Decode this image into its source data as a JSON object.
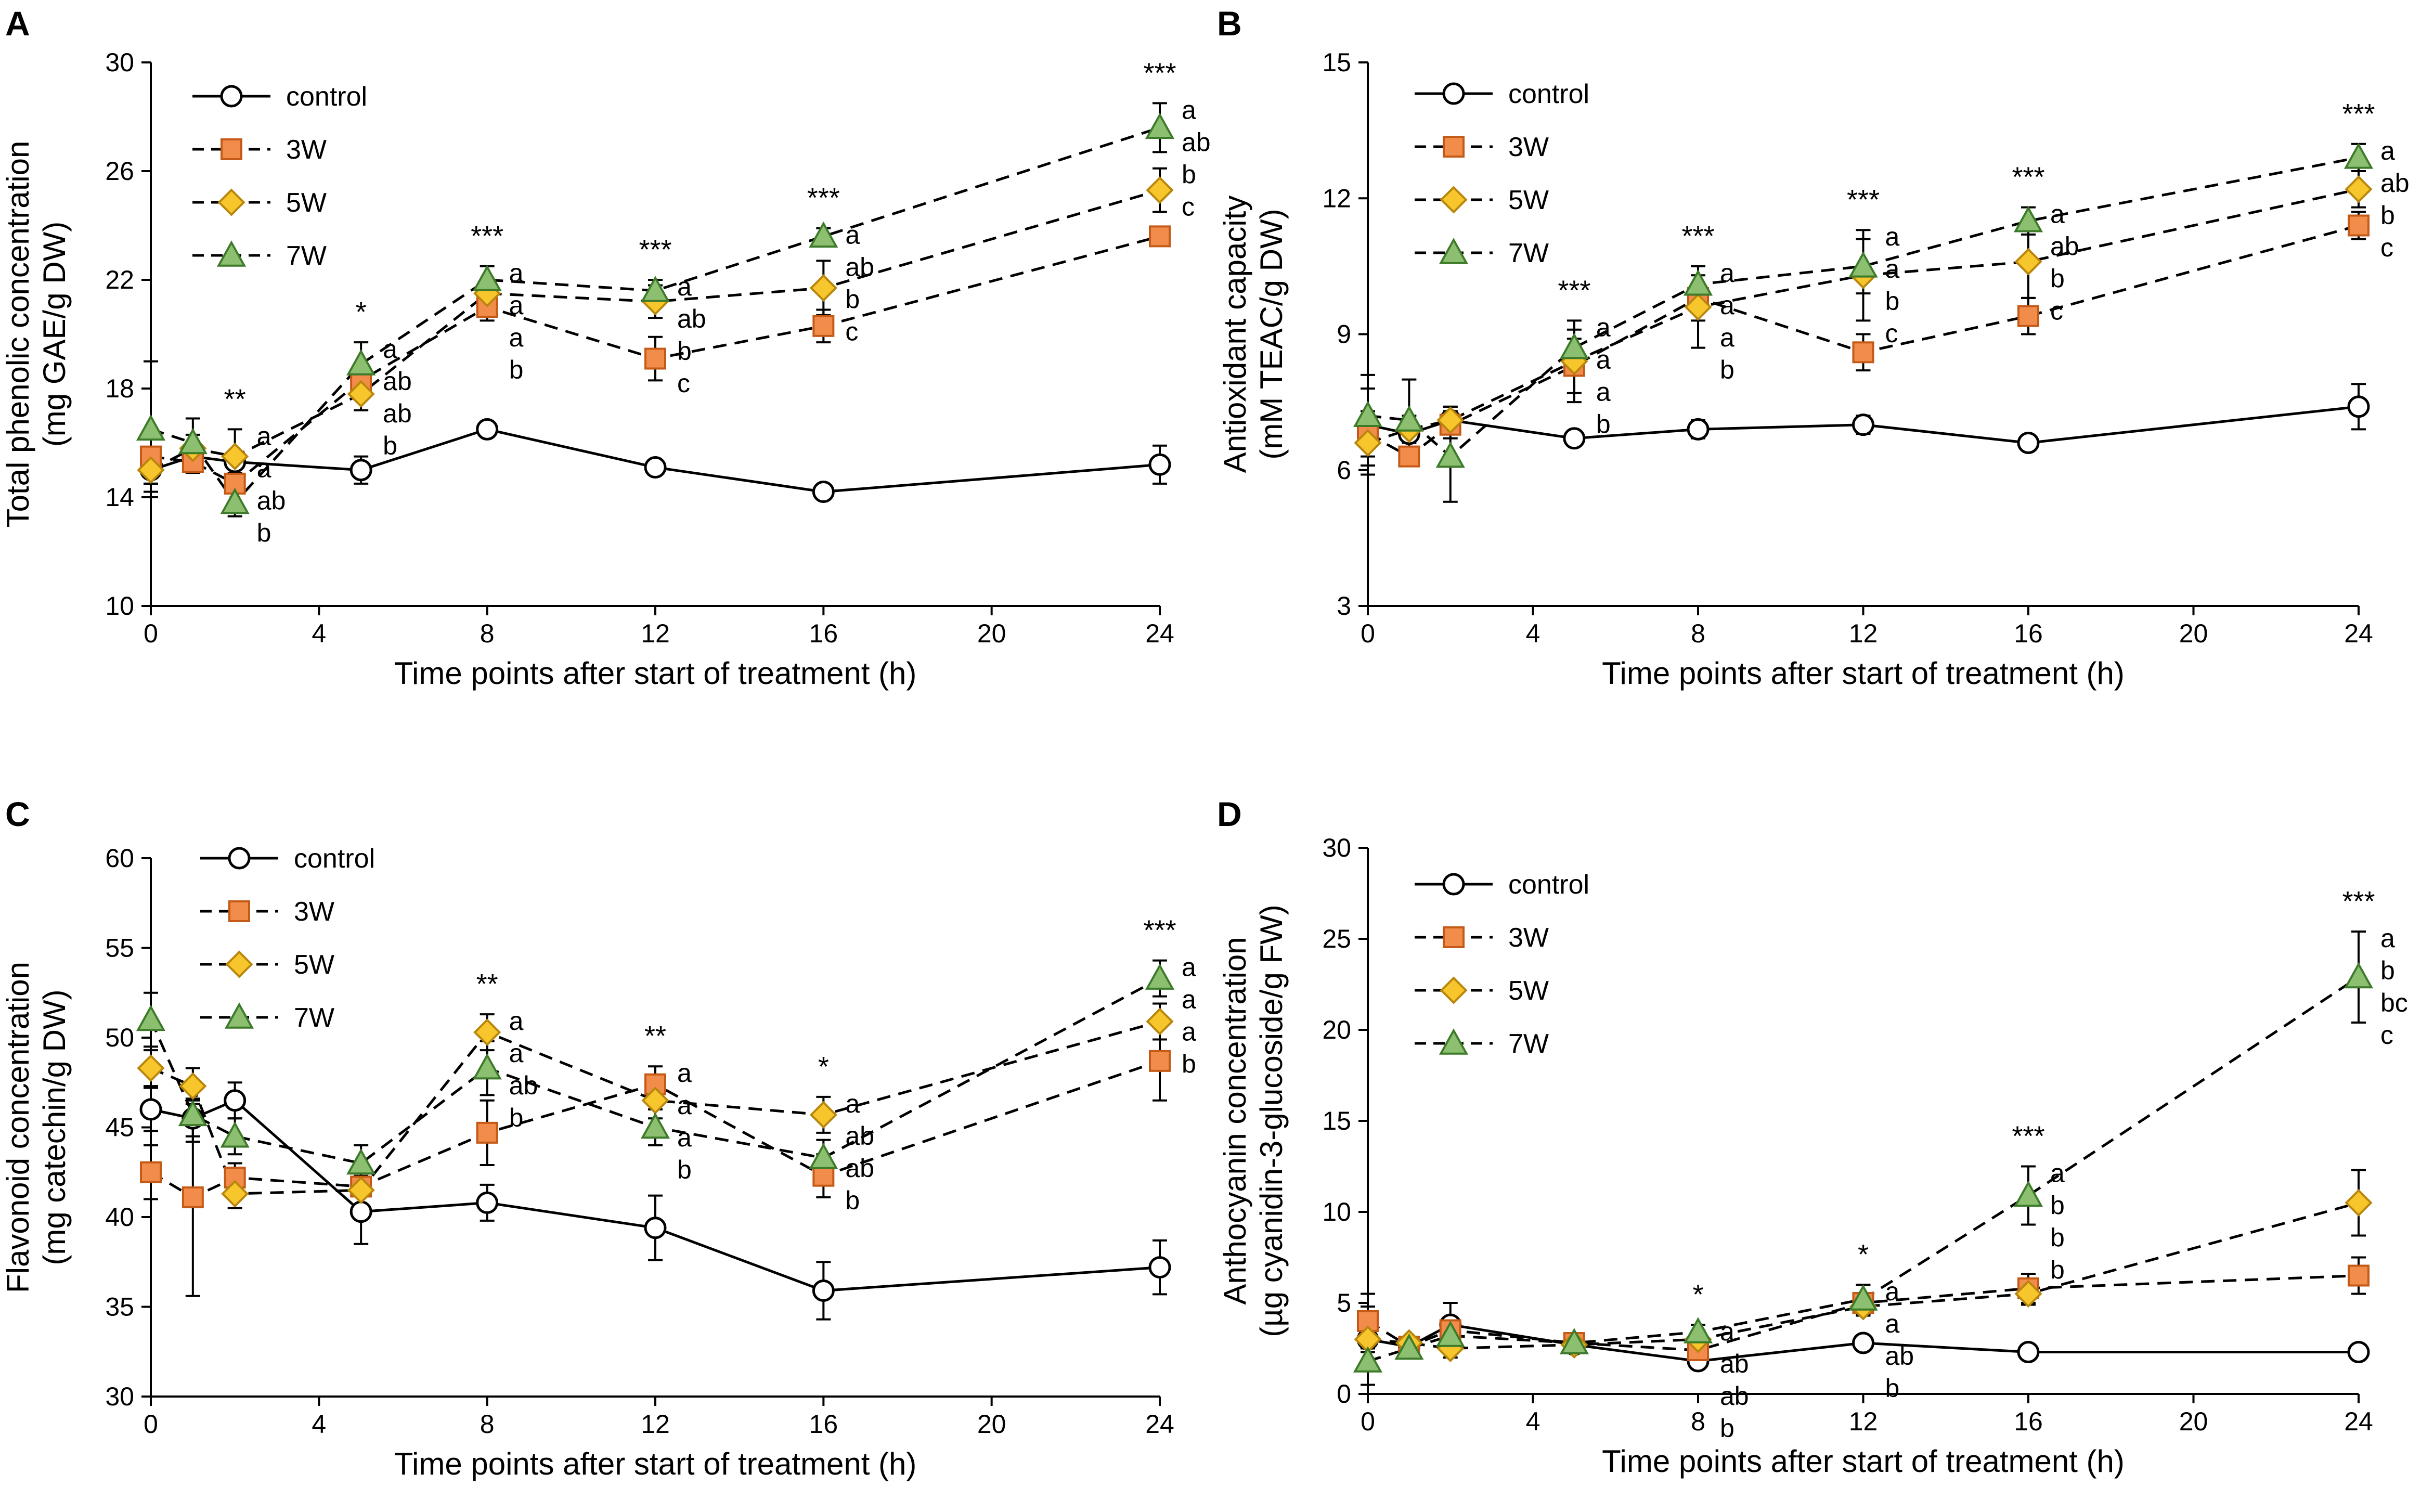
{
  "figure_labels": [
    "A",
    "B",
    "C",
    "D"
  ],
  "x_tick_labels": [
    "0",
    "4",
    "8",
    "12",
    "16",
    "20",
    "24"
  ],
  "colors": {
    "control_line": "#000000",
    "w3_fill": "#f28c4b",
    "w3_stroke": "#c45a17",
    "w5_fill": "#f7c52c",
    "w5_stroke": "#b8860b",
    "w7_fill": "#8cc070",
    "w7_stroke": "#3d7a2a",
    "control_fill": "#ffffff"
  },
  "chart_data": [
    {
      "type": "line",
      "label": "A",
      "xlabel": "Time points after start of treatment (h)",
      "ylabel": [
        "Total phenolic concentration",
        "(mg GAE/g DW)"
      ],
      "xlim": [
        0,
        24
      ],
      "ylim": [
        10,
        30
      ],
      "x_ticks": [
        0,
        4,
        8,
        12,
        16,
        20,
        24
      ],
      "y_ticks": [
        10,
        14,
        18,
        22,
        26,
        30
      ],
      "y_tick_labels": [
        "10",
        "14",
        "18",
        "22",
        "26",
        "30"
      ],
      "legend": [
        "control",
        "3W",
        "5W",
        "7W"
      ],
      "series": [
        {
          "name": "control",
          "marker": "circle",
          "dash": "solid",
          "x": [
            0,
            1,
            2,
            5,
            8,
            12,
            16,
            24
          ],
          "y": [
            15.0,
            15.5,
            15.3,
            15.0,
            16.5,
            15.1,
            14.2,
            15.2
          ],
          "err": [
            0.5,
            0.3,
            0.4,
            0.5,
            0.2,
            0.2,
            0.2,
            0.7
          ]
        },
        {
          "name": "3W",
          "marker": "square",
          "dash": "dashed",
          "x": [
            0,
            1,
            2,
            5,
            8,
            12,
            16,
            24
          ],
          "y": [
            15.5,
            15.3,
            14.5,
            18.3,
            21.0,
            19.1,
            20.3,
            23.6
          ],
          "err": [
            1.0,
            0.4,
            0.8,
            0.6,
            0.5,
            0.8,
            0.6,
            0.3
          ]
        },
        {
          "name": "5W",
          "marker": "diamond",
          "dash": "dashed",
          "x": [
            0,
            1,
            2,
            5,
            8,
            12,
            16,
            24
          ],
          "y": [
            15.0,
            15.8,
            15.5,
            17.8,
            21.5,
            21.2,
            21.7,
            25.3
          ],
          "err": [
            0.8,
            0.5,
            1.0,
            0.6,
            0.5,
            0.6,
            1.0,
            0.8
          ]
        },
        {
          "name": "7W",
          "marker": "triangle",
          "dash": "dashed",
          "x": [
            0,
            1,
            2,
            5,
            8,
            12,
            16,
            24
          ],
          "y": [
            16.5,
            16.0,
            13.8,
            18.9,
            22.0,
            21.6,
            23.6,
            27.6
          ],
          "err": [
            2.5,
            0.9,
            0.5,
            0.8,
            0.5,
            0.4,
            0.3,
            0.9
          ]
        }
      ],
      "significance": [
        {
          "x": 2,
          "text": "**"
        },
        {
          "x": 5,
          "text": "*"
        },
        {
          "x": 8,
          "text": "***"
        },
        {
          "x": 12,
          "text": "***"
        },
        {
          "x": 16,
          "text": "***"
        },
        {
          "x": 24,
          "text": "***"
        }
      ],
      "letters": [
        {
          "x": 2,
          "labels": [
            "a",
            "a",
            "ab",
            "b"
          ]
        },
        {
          "x": 5,
          "labels": [
            "a",
            "ab",
            "ab",
            "b"
          ]
        },
        {
          "x": 8,
          "labels": [
            "a",
            "a",
            "a",
            "b"
          ]
        },
        {
          "x": 12,
          "labels": [
            "a",
            "ab",
            "b",
            "c"
          ]
        },
        {
          "x": 16,
          "labels": [
            "a",
            "ab",
            "b",
            "c"
          ]
        },
        {
          "x": 24,
          "labels": [
            "a",
            "ab",
            "b",
            "c"
          ]
        }
      ]
    },
    {
      "type": "line",
      "label": "B",
      "xlabel": "Time points after start of treatment (h)",
      "ylabel": [
        "Antioxidant capacity",
        "(mM TEAC/g DW)"
      ],
      "xlim": [
        0,
        24
      ],
      "ylim": [
        3,
        15
      ],
      "x_ticks": [
        0,
        4,
        8,
        12,
        16,
        20,
        24
      ],
      "y_ticks": [
        3,
        6,
        9,
        12,
        15
      ],
      "y_tick_labels": [
        "3",
        "6",
        "9",
        "12",
        "15"
      ],
      "legend": [
        "control",
        "3W",
        "5W",
        "7W"
      ],
      "series": [
        {
          "name": "control",
          "marker": "circle",
          "dash": "solid",
          "x": [
            0,
            1,
            2,
            5,
            8,
            12,
            16,
            24
          ],
          "y": [
            7.0,
            6.8,
            7.1,
            6.7,
            6.9,
            7.0,
            6.6,
            7.4
          ],
          "err": [
            1.1,
            0.3,
            0.3,
            0.1,
            0.2,
            0.2,
            0.1,
            0.5
          ]
        },
        {
          "name": "3W",
          "marker": "square",
          "dash": "dashed",
          "x": [
            0,
            1,
            2,
            5,
            8,
            12,
            16,
            24
          ],
          "y": [
            6.8,
            6.3,
            7.0,
            8.3,
            9.8,
            8.6,
            9.4,
            11.4
          ],
          "err": [
            0.5,
            0.2,
            0.3,
            0.6,
            0.5,
            0.4,
            0.4,
            0.3
          ]
        },
        {
          "name": "5W",
          "marker": "diamond",
          "dash": "dashed",
          "x": [
            0,
            1,
            2,
            5,
            8,
            12,
            16,
            24
          ],
          "y": [
            6.6,
            6.9,
            7.1,
            8.4,
            9.6,
            10.3,
            10.6,
            12.2
          ],
          "err": [
            0.5,
            0.3,
            0.3,
            0.9,
            0.9,
            1.0,
            0.8,
            0.4
          ]
        },
        {
          "name": "7W",
          "marker": "triangle",
          "dash": "dashed",
          "x": [
            0,
            1,
            2,
            5,
            8,
            12,
            16,
            24
          ],
          "y": [
            7.2,
            7.1,
            6.3,
            8.7,
            10.1,
            10.5,
            11.5,
            12.9
          ],
          "err": [
            0.6,
            0.9,
            1.0,
            0.4,
            0.4,
            0.6,
            0.3,
            0.3
          ]
        }
      ],
      "significance": [
        {
          "x": 5,
          "text": "***"
        },
        {
          "x": 8,
          "text": "***"
        },
        {
          "x": 12,
          "text": "***"
        },
        {
          "x": 16,
          "text": "***"
        },
        {
          "x": 24,
          "text": "***"
        }
      ],
      "letters": [
        {
          "x": 5,
          "labels": [
            "a",
            "a",
            "a",
            "b"
          ]
        },
        {
          "x": 8,
          "labels": [
            "a",
            "a",
            "a",
            "b"
          ]
        },
        {
          "x": 12,
          "labels": [
            "a",
            "a",
            "b",
            "c"
          ]
        },
        {
          "x": 16,
          "labels": [
            "a",
            "ab",
            "b",
            "c"
          ]
        },
        {
          "x": 24,
          "labels": [
            "a",
            "ab",
            "b",
            "c"
          ]
        }
      ]
    },
    {
      "type": "line",
      "label": "C",
      "xlabel": "Time points after start of treatment (h)",
      "ylabel": [
        "Flavonoid concentration",
        "(mg catechin/g DW)"
      ],
      "xlim": [
        0,
        24
      ],
      "ylim": [
        30,
        60
      ],
      "x_ticks": [
        0,
        4,
        8,
        12,
        16,
        20,
        24
      ],
      "y_ticks": [
        30,
        35,
        40,
        45,
        50,
        55,
        60
      ],
      "y_tick_labels": [
        "30",
        "35",
        "40",
        "45",
        "50",
        "55",
        "60"
      ],
      "legend": [
        "control",
        "3W",
        "5W",
        "7W"
      ],
      "series": [
        {
          "name": "control",
          "marker": "circle",
          "dash": "solid",
          "x": [
            0,
            1,
            2,
            5,
            8,
            12,
            16,
            24
          ],
          "y": [
            46.0,
            45.5,
            46.5,
            40.3,
            40.8,
            39.4,
            35.9,
            37.2
          ],
          "err": [
            1.2,
            1.0,
            1.0,
            1.8,
            1.0,
            1.8,
            1.6,
            1.5
          ]
        },
        {
          "name": "3W",
          "marker": "square",
          "dash": "dashed",
          "x": [
            0,
            1,
            2,
            5,
            8,
            12,
            16,
            24
          ],
          "y": [
            42.5,
            41.1,
            42.2,
            41.7,
            44.7,
            47.4,
            42.3,
            48.7
          ],
          "err": [
            1.5,
            5.5,
            0.8,
            0.4,
            1.8,
            1.0,
            1.2,
            2.2
          ]
        },
        {
          "name": "5W",
          "marker": "diamond",
          "dash": "dashed",
          "x": [
            0,
            1,
            2,
            5,
            8,
            12,
            16,
            24
          ],
          "y": [
            48.3,
            47.3,
            41.3,
            41.5,
            50.3,
            46.5,
            45.7,
            50.9
          ],
          "err": [
            1.0,
            1.0,
            0.8,
            0.8,
            1.0,
            1.0,
            1.0,
            1.0
          ]
        },
        {
          "name": "7W",
          "marker": "triangle",
          "dash": "dashed",
          "x": [
            0,
            1,
            2,
            5,
            8,
            12,
            16,
            24
          ],
          "y": [
            51.0,
            45.7,
            44.5,
            43.0,
            48.3,
            45.0,
            43.3,
            53.3
          ],
          "err": [
            1.5,
            1.5,
            1.0,
            1.0,
            1.5,
            1.0,
            1.0,
            1.0
          ]
        }
      ],
      "significance": [
        {
          "x": 8,
          "text": "**"
        },
        {
          "x": 12,
          "text": "**"
        },
        {
          "x": 16,
          "text": "*"
        },
        {
          "x": 24,
          "text": "***"
        }
      ],
      "letters": [
        {
          "x": 8,
          "labels": [
            "a",
            "a",
            "ab",
            "b"
          ]
        },
        {
          "x": 12,
          "labels": [
            "a",
            "a",
            "a",
            "b"
          ]
        },
        {
          "x": 16,
          "labels": [
            "a",
            "ab",
            "ab",
            "b"
          ]
        },
        {
          "x": 24,
          "labels": [
            "a",
            "a",
            "a",
            "b"
          ]
        }
      ]
    },
    {
      "type": "line",
      "label": "D",
      "xlabel": "Time points after start of treatment (h)",
      "ylabel": [
        "Anthocyanin concentration",
        "(µg cyanidin-3-glucoside/g FW)"
      ],
      "xlim": [
        0,
        24
      ],
      "ylim": [
        0,
        30
      ],
      "x_ticks": [
        0,
        4,
        8,
        12,
        16,
        20,
        24
      ],
      "y_ticks": [
        0,
        5,
        10,
        15,
        20,
        25,
        30
      ],
      "y_tick_labels": [
        "0",
        "5",
        "10",
        "15",
        "20",
        "25",
        "30"
      ],
      "legend": [
        "control",
        "3W",
        "5W",
        "7W"
      ],
      "series": [
        {
          "name": "control",
          "marker": "circle",
          "dash": "solid",
          "x": [
            0,
            1,
            2,
            5,
            8,
            12,
            16,
            24
          ],
          "y": [
            3.0,
            2.6,
            3.8,
            2.7,
            1.8,
            2.8,
            2.3,
            2.3
          ],
          "err": [
            2.5,
            0.3,
            1.2,
            0.3,
            0.3,
            0.2,
            0.2,
            0.2
          ]
        },
        {
          "name": "3W",
          "marker": "square",
          "dash": "dashed",
          "x": [
            0,
            1,
            2,
            5,
            8,
            12,
            16,
            24
          ],
          "y": [
            4.0,
            2.6,
            3.5,
            2.8,
            2.4,
            5.0,
            5.8,
            6.5
          ],
          "err": [
            0.8,
            0.3,
            0.5,
            0.3,
            0.4,
            0.5,
            0.8,
            1.0
          ]
        },
        {
          "name": "5W",
          "marker": "diamond",
          "dash": "dashed",
          "x": [
            0,
            1,
            2,
            5,
            8,
            12,
            16,
            24
          ],
          "y": [
            3.0,
            2.8,
            2.5,
            2.7,
            3.0,
            4.8,
            5.5,
            10.5
          ],
          "err": [
            0.5,
            0.3,
            0.5,
            0.3,
            0.5,
            0.5,
            0.6,
            1.8
          ]
        },
        {
          "name": "7W",
          "marker": "triangle",
          "dash": "dashed",
          "x": [
            0,
            1,
            2,
            5,
            8,
            12,
            16,
            24
          ],
          "y": [
            1.8,
            2.5,
            3.2,
            2.8,
            3.4,
            5.2,
            10.9,
            22.9
          ],
          "err": [
            0.5,
            0.3,
            0.5,
            0.3,
            0.4,
            0.8,
            1.6,
            2.5
          ]
        }
      ],
      "significance": [
        {
          "x": 8,
          "text": "*"
        },
        {
          "x": 12,
          "text": "*"
        },
        {
          "x": 16,
          "text": "***"
        },
        {
          "x": 24,
          "text": "***"
        }
      ],
      "letters": [
        {
          "x": 8,
          "labels": [
            "a",
            "ab",
            "ab",
            "b"
          ]
        },
        {
          "x": 12,
          "labels": [
            "a",
            "a",
            "ab",
            "b"
          ]
        },
        {
          "x": 16,
          "labels": [
            "a",
            "b",
            "b",
            "b"
          ]
        },
        {
          "x": 24,
          "labels": [
            "a",
            "b",
            "bc",
            "c"
          ]
        }
      ]
    }
  ]
}
